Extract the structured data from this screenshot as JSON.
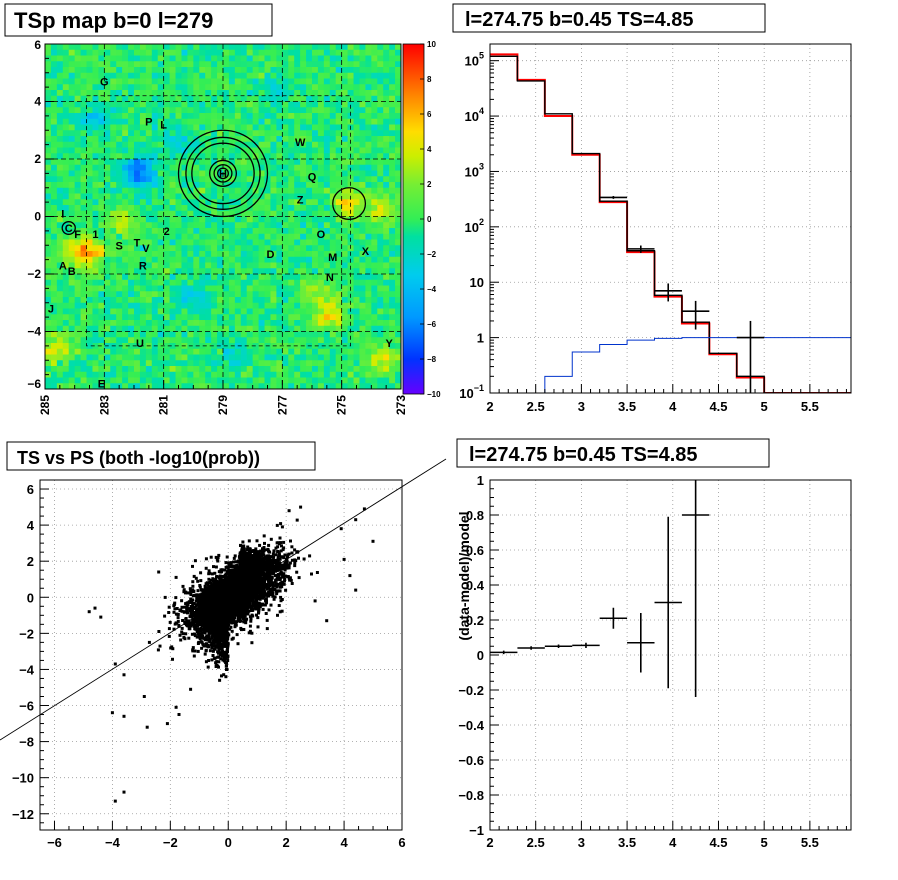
{
  "titles": {
    "tl": "TSp map b=0 l=279",
    "tr": "l=274.75 b=0.45 TS=4.85",
    "bl": "TS vs PS (both -log10(prob))",
    "br": "l=274.75 b=0.45 TS=4.85"
  },
  "chart_data": [
    {
      "id": "tsp-map",
      "type": "heatmap",
      "title": "TSp map b=0 l=279",
      "x_ticks": [
        "285",
        "283",
        "281",
        "279",
        "277",
        "275",
        "273"
      ],
      "y_ticks": [
        "6",
        "4",
        "2",
        "0",
        "-2",
        "-4",
        "-6"
      ],
      "xlim": [
        285,
        273
      ],
      "ylim": [
        -6,
        6
      ],
      "colorbar": {
        "range": [
          -10,
          10
        ],
        "ticks": [
          "10",
          "8",
          "6",
          "4",
          "2",
          "0",
          "-2",
          "-4",
          "-6",
          "-8",
          "-10"
        ]
      },
      "source_labels": [
        {
          "text": "G",
          "l": 283.0,
          "b": 4.7
        },
        {
          "text": "P",
          "l": 281.5,
          "b": 3.3
        },
        {
          "text": "L",
          "l": 281.0,
          "b": 3.2
        },
        {
          "text": "W",
          "l": 276.4,
          "b": 2.6
        },
        {
          "text": "Q",
          "l": 276.0,
          "b": 1.4
        },
        {
          "text": "Z",
          "l": 276.4,
          "b": 0.6
        },
        {
          "text": "I",
          "l": 284.4,
          "b": 0.1
        },
        {
          "text": "F",
          "l": 283.9,
          "b": -0.6
        },
        {
          "text": "1",
          "l": 283.3,
          "b": -0.6
        },
        {
          "text": "2",
          "l": 280.9,
          "b": -0.5
        },
        {
          "text": "S",
          "l": 282.5,
          "b": -1.0
        },
        {
          "text": "T",
          "l": 281.9,
          "b": -0.9
        },
        {
          "text": "V",
          "l": 281.6,
          "b": -1.1
        },
        {
          "text": "R",
          "l": 281.7,
          "b": -1.7
        },
        {
          "text": "D",
          "l": 277.4,
          "b": -1.3
        },
        {
          "text": "O",
          "l": 275.7,
          "b": -0.6
        },
        {
          "text": "M",
          "l": 275.3,
          "b": -1.4
        },
        {
          "text": "X",
          "l": 274.2,
          "b": -1.2
        },
        {
          "text": "N",
          "l": 275.4,
          "b": -2.1
        },
        {
          "text": "A",
          "l": 284.4,
          "b": -1.7
        },
        {
          "text": "B",
          "l": 284.1,
          "b": -1.9
        },
        {
          "text": "J",
          "l": 284.8,
          "b": -3.2
        },
        {
          "text": "U",
          "l": 281.8,
          "b": -4.4
        },
        {
          "text": "Y",
          "l": 273.4,
          "b": -4.4
        },
        {
          "text": "E",
          "l": 283.1,
          "b": -5.8
        },
        {
          "text": "C",
          "l": 284.2,
          "b": -0.4
        },
        {
          "text": "H",
          "l": 279.0,
          "b": 1.5
        }
      ],
      "circles": [
        {
          "l": 279.0,
          "b": 1.5,
          "r": [
            1.5,
            1.25,
            1.05,
            0.45,
            0.3,
            0.18
          ]
        },
        {
          "l": 274.75,
          "b": 0.45,
          "r": [
            0.55
          ]
        },
        {
          "l": 284.2,
          "b": -0.4,
          "r": [
            0.22
          ]
        }
      ],
      "hot_spots": [
        {
          "l": 281.8,
          "b": 1.55,
          "v": -7
        },
        {
          "l": 274.75,
          "b": 0.45,
          "v": 5
        },
        {
          "l": 273.6,
          "b": 0.2,
          "v": 4
        },
        {
          "l": 283.9,
          "b": -1.2,
          "v": 5
        },
        {
          "l": 283.4,
          "b": -1.3,
          "v": 4
        },
        {
          "l": 275.4,
          "b": -3.4,
          "v": 5
        },
        {
          "l": 284.6,
          "b": -4.6,
          "v": 4
        },
        {
          "l": 273.6,
          "b": -5.0,
          "v": 4
        },
        {
          "l": 282.4,
          "b": -0.2,
          "v": 3
        },
        {
          "l": 276.0,
          "b": -2.6,
          "v": 3
        },
        {
          "l": 283.3,
          "b": 3.4,
          "v": -3
        },
        {
          "l": 280.6,
          "b": 2.7,
          "v": -3
        },
        {
          "l": 280.0,
          "b": -2.8,
          "v": -3
        },
        {
          "l": 277.2,
          "b": 4.5,
          "v": -2
        },
        {
          "l": 278.6,
          "b": -4.8,
          "v": -2
        }
      ]
    },
    {
      "id": "spectrum",
      "type": "line",
      "title": "l=274.75 b=0.45 TS=4.85",
      "xlim": [
        2,
        5.95
      ],
      "ylog": true,
      "ylim": [
        0.1,
        200000
      ],
      "x_ticks": [
        2,
        2.5,
        3,
        3.5,
        4,
        4.5,
        5,
        5.5
      ],
      "x_tick_labels": [
        "2",
        "2.5",
        "3",
        "3.5",
        "4",
        "4.5",
        "5",
        "5.5"
      ],
      "y_tick_labels": [
        {
          "v": 0.1,
          "t": "10",
          "e": "-1"
        },
        {
          "v": 1,
          "t": "1",
          "e": ""
        },
        {
          "v": 10,
          "t": "10",
          "e": ""
        },
        {
          "v": 100,
          "t": "10",
          "e": "2"
        },
        {
          "v": 1000,
          "t": "10",
          "e": "3"
        },
        {
          "v": 10000,
          "t": "10",
          "e": "4"
        },
        {
          "v": 100000,
          "t": "10",
          "e": "5"
        }
      ],
      "bin_edges": [
        2,
        2.3,
        2.6,
        2.9,
        3.2,
        3.5,
        3.8,
        4.1,
        4.4,
        4.7,
        5.0,
        5.3,
        5.6,
        5.95
      ],
      "series": [
        {
          "role": "total-model",
          "color": "#ff0000",
          "values": [
            130000,
            45000,
            10000,
            2000,
            280,
            35,
            5.5,
            1.8,
            0.5,
            0.19,
            0.1,
            0.1,
            0.1
          ]
        },
        {
          "role": "other-model",
          "color": "#000000",
          "values": [
            120000,
            43000,
            11000,
            2100,
            290,
            37,
            5.8,
            1.9,
            0.52,
            0.2,
            0.1,
            0.1,
            0.1
          ]
        },
        {
          "role": "point-source",
          "color": "#0033cc",
          "values": [
            0.05,
            0.07,
            0.2,
            0.55,
            0.75,
            0.9,
            0.97,
            1.0,
            1.0,
            1.0,
            1.0,
            1.0,
            1.0
          ]
        }
      ],
      "data_points": [
        {
          "x": 3.35,
          "y": 340,
          "xe": 0.15,
          "ylo": 320,
          "yhi": 360
        },
        {
          "x": 3.65,
          "y": 40,
          "xe": 0.15,
          "ylo": 34,
          "yhi": 46
        },
        {
          "x": 3.95,
          "y": 7,
          "xe": 0.15,
          "ylo": 4.5,
          "yhi": 9.5
        },
        {
          "x": 4.25,
          "y": 3,
          "xe": 0.15,
          "ylo": 1.4,
          "yhi": 4.6
        },
        {
          "x": 4.85,
          "y": 1,
          "xe": 0.15,
          "ylo": 0.1,
          "yhi": 2
        }
      ]
    },
    {
      "id": "ts-vs-ps",
      "type": "scatter",
      "title": "TS vs PS (both -log10(prob))",
      "xlim": [
        -6.5,
        6
      ],
      "ylim": [
        -12.9,
        6.5
      ],
      "x_ticks": [
        -6,
        -4,
        -2,
        0,
        2,
        4,
        6
      ],
      "y_ticks": [
        6,
        4,
        2,
        0,
        -2,
        -4,
        -6,
        -8,
        -10,
        -12
      ],
      "line": {
        "slope": 1,
        "intercept": 0
      },
      "outliers": [
        [
          -3.6,
          -10.8
        ],
        [
          -3.9,
          -11.3
        ],
        [
          -4.0,
          -6.4
        ],
        [
          -3.6,
          -6.6
        ],
        [
          -2.8,
          -7.2
        ],
        [
          -1.8,
          -6.1
        ],
        [
          -1.7,
          -6.5
        ],
        [
          -4.8,
          -0.8
        ],
        [
          -4.6,
          -0.6
        ],
        [
          -4.4,
          -1.1
        ],
        [
          -3.6,
          -4.3
        ],
        [
          -3.9,
          -3.7
        ],
        [
          3.9,
          3.8
        ],
        [
          4.4,
          4.3
        ],
        [
          5.0,
          3.1
        ],
        [
          4.7,
          4.9
        ],
        [
          4.2,
          1.2
        ],
        [
          4.4,
          0.4
        ],
        [
          4.0,
          2.1
        ],
        [
          3.4,
          -1.3
        ],
        [
          3.0,
          -0.2
        ],
        [
          2.5,
          5.0
        ],
        [
          2.1,
          4.8
        ],
        [
          -2.9,
          -5.5
        ],
        [
          -2.1,
          -7.0
        ],
        [
          -1.3,
          -5.1
        ],
        [
          -0.3,
          -4.6
        ],
        [
          -1.8,
          1.1
        ],
        [
          -2.4,
          1.4
        ],
        [
          1.7,
          -1.0
        ]
      ]
    },
    {
      "id": "residuals",
      "type": "scatter",
      "title": "l=274.75 b=0.45 TS=4.85",
      "ylabel": "(data-model)/model",
      "xlim": [
        2,
        5.95
      ],
      "ylim": [
        -1,
        1
      ],
      "x_ticks": [
        2,
        2.5,
        3,
        3.5,
        4,
        4.5,
        5,
        5.5
      ],
      "x_tick_labels": [
        "2",
        "2.5",
        "3",
        "3.5",
        "4",
        "4.5",
        "5",
        "5.5"
      ],
      "y_ticks": [
        1,
        0.8,
        0.6,
        0.4,
        0.2,
        0,
        -0.2,
        -0.4,
        -0.6,
        -0.8,
        -1
      ],
      "y_tick_labels": [
        "1",
        "0.8",
        "0.6",
        "0.4",
        "0.2",
        "0",
        "−0.2",
        "−0.4",
        "−0.6",
        "−0.8",
        "−1"
      ],
      "points": [
        {
          "x": 2.15,
          "y": 0.015,
          "xe": 0.15,
          "ylo": 0.005,
          "yhi": 0.025
        },
        {
          "x": 2.45,
          "y": 0.04,
          "xe": 0.15,
          "ylo": 0.03,
          "yhi": 0.05
        },
        {
          "x": 2.75,
          "y": 0.05,
          "xe": 0.15,
          "ylo": 0.04,
          "yhi": 0.06
        },
        {
          "x": 3.05,
          "y": 0.055,
          "xe": 0.15,
          "ylo": 0.04,
          "yhi": 0.07
        },
        {
          "x": 3.35,
          "y": 0.21,
          "xe": 0.15,
          "ylo": 0.15,
          "yhi": 0.27
        },
        {
          "x": 3.65,
          "y": 0.07,
          "xe": 0.15,
          "ylo": -0.1,
          "yhi": 0.24
        },
        {
          "x": 3.95,
          "y": 0.3,
          "xe": 0.15,
          "ylo": -0.19,
          "yhi": 0.79
        },
        {
          "x": 4.25,
          "y": 0.8,
          "xe": 0.15,
          "ylo": -0.24,
          "yhi": 1.0
        }
      ]
    }
  ]
}
